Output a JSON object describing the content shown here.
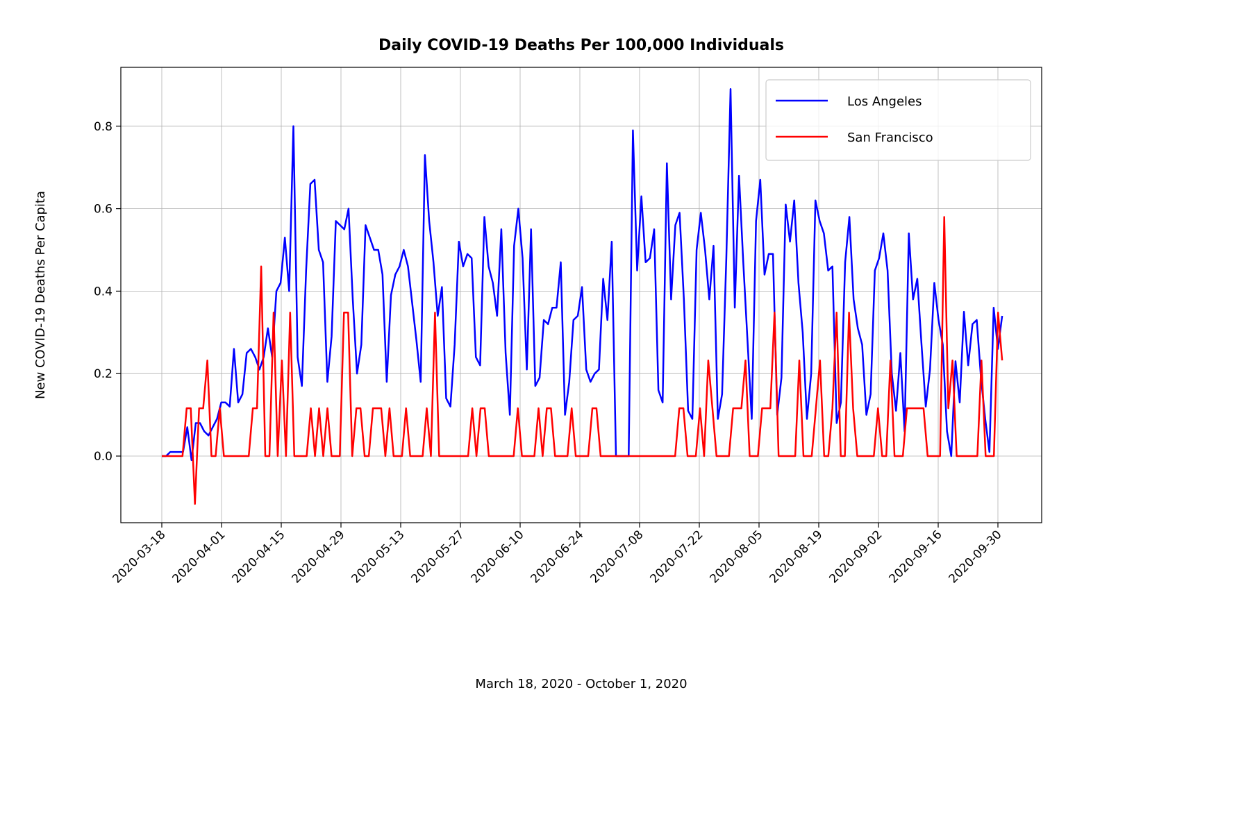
{
  "chart_data": {
    "type": "line",
    "title": "Daily COVID-19 Deaths Per 100,000 Individuals",
    "xlabel": "March 18, 2020 - October 1, 2020",
    "ylabel": "New COVID-19 Deaths Per Capita",
    "x_start": "2020-03-18",
    "x_ticks": [
      "2020-03-18",
      "2020-04-01",
      "2020-04-15",
      "2020-04-29",
      "2020-05-13",
      "2020-05-27",
      "2020-06-10",
      "2020-06-24",
      "2020-07-08",
      "2020-07-22",
      "2020-08-05",
      "2020-08-19",
      "2020-09-02",
      "2020-09-16",
      "2020-09-30"
    ],
    "y_ticks": [
      "0.0",
      "0.2",
      "0.4",
      "0.6",
      "0.8"
    ],
    "ylim": [
      -0.16,
      0.94
    ],
    "grid": true,
    "legend_position": "top-right",
    "series": [
      {
        "name": "Los Angeles",
        "color": "#0000ff",
        "values": [
          0.0,
          0.0,
          0.01,
          0.01,
          0.01,
          0.01,
          0.07,
          -0.01,
          0.08,
          0.08,
          0.06,
          0.05,
          0.07,
          0.09,
          0.13,
          0.13,
          0.12,
          0.26,
          0.13,
          0.15,
          0.25,
          0.26,
          0.24,
          0.21,
          0.24,
          0.31,
          0.24,
          0.4,
          0.42,
          0.53,
          0.4,
          0.8,
          0.24,
          0.17,
          0.45,
          0.66,
          0.67,
          0.5,
          0.47,
          0.18,
          0.29,
          0.57,
          0.56,
          0.55,
          0.6,
          0.38,
          0.2,
          0.27,
          0.56,
          0.53,
          0.5,
          0.5,
          0.44,
          0.18,
          0.39,
          0.44,
          0.46,
          0.5,
          0.46,
          0.37,
          0.28,
          0.18,
          0.73,
          0.57,
          0.47,
          0.34,
          0.41,
          0.14,
          0.12,
          0.27,
          0.52,
          0.46,
          0.49,
          0.48,
          0.24,
          0.22,
          0.58,
          0.46,
          0.42,
          0.34,
          0.55,
          0.25,
          0.1,
          0.51,
          0.6,
          0.48,
          0.21,
          0.55,
          0.17,
          0.19,
          0.33,
          0.32,
          0.36,
          0.36,
          0.47,
          0.1,
          0.18,
          0.33,
          0.34,
          0.41,
          0.21,
          0.18,
          0.2,
          0.21,
          0.43,
          0.33,
          0.52,
          0.0,
          0.0,
          0.0,
          0.0,
          0.79,
          0.45,
          0.63,
          0.47,
          0.48,
          0.55,
          0.16,
          0.13,
          0.71,
          0.38,
          0.56,
          0.59,
          0.38,
          0.11,
          0.09,
          0.5,
          0.59,
          0.5,
          0.38,
          0.51,
          0.09,
          0.15,
          0.48,
          0.89,
          0.36,
          0.68,
          0.47,
          0.28,
          0.09,
          0.57,
          0.67,
          0.44,
          0.49,
          0.49,
          0.1,
          0.19,
          0.61,
          0.52,
          0.62,
          0.42,
          0.3,
          0.09,
          0.2,
          0.62,
          0.57,
          0.54,
          0.45,
          0.46,
          0.08,
          0.13,
          0.47,
          0.58,
          0.38,
          0.31,
          0.27,
          0.1,
          0.15,
          0.45,
          0.48,
          0.54,
          0.45,
          0.2,
          0.11,
          0.25,
          0.06,
          0.54,
          0.38,
          0.43,
          0.27,
          0.12,
          0.21,
          0.42,
          0.33,
          0.27,
          0.06,
          0.0,
          0.23,
          0.13,
          0.35,
          0.22,
          0.32,
          0.33,
          0.19,
          0.09,
          0.01,
          0.36,
          0.26,
          0.34
        ]
      },
      {
        "name": "San Francisco",
        "color": "#ff0000",
        "values": [
          0.0,
          0.0,
          0.0,
          0.0,
          0.0,
          0.0,
          0.116,
          0.116,
          -0.116,
          0.116,
          0.116,
          0.232,
          0.0,
          0.0,
          0.116,
          0.0,
          0.0,
          0.0,
          0.0,
          0.0,
          0.0,
          0.0,
          0.116,
          0.116,
          0.46,
          0.0,
          0.0,
          0.348,
          0.0,
          0.232,
          0.0,
          0.348,
          0.0,
          0.0,
          0.0,
          0.0,
          0.116,
          0.0,
          0.116,
          0.0,
          0.116,
          0.0,
          0.0,
          0.0,
          0.348,
          0.348,
          0.0,
          0.116,
          0.116,
          0.0,
          0.0,
          0.116,
          0.116,
          0.116,
          0.0,
          0.116,
          0.0,
          0.0,
          0.0,
          0.116,
          0.0,
          0.0,
          0.0,
          0.0,
          0.116,
          0.0,
          0.348,
          0.0,
          0.0,
          0.0,
          0.0,
          0.0,
          0.0,
          0.0,
          0.0,
          0.116,
          0.0,
          0.116,
          0.116,
          0.0,
          0.0,
          0.0,
          0.0,
          0.0,
          0.0,
          0.0,
          0.116,
          0.0,
          0.0,
          0.0,
          0.0,
          0.116,
          0.0,
          0.116,
          0.116,
          0.0,
          0.0,
          0.0,
          0.0,
          0.116,
          0.0,
          0.0,
          0.0,
          0.0,
          0.116,
          0.116,
          0.0,
          0.0,
          0.0,
          0.0,
          0.0,
          0.0,
          0.0,
          0.0,
          0.0,
          0.0,
          0.0,
          0.0,
          0.0,
          0.0,
          0.0,
          0.0,
          0.0,
          0.0,
          0.0,
          0.116,
          0.116,
          0.0,
          0.0,
          0.0,
          0.116,
          0.0,
          0.232,
          0.116,
          0.0,
          0.0,
          0.0,
          0.0,
          0.116,
          0.116,
          0.116,
          0.232,
          0.0,
          0.0,
          0.0,
          0.116,
          0.116,
          0.116,
          0.348,
          0.0,
          0.0,
          0.0,
          0.0,
          0.0,
          0.232,
          0.0,
          0.0,
          0.0,
          0.116,
          0.232,
          0.0,
          0.0,
          0.116,
          0.348,
          0.0,
          0.0,
          0.348,
          0.116,
          0.0,
          0.0,
          0.0,
          0.0,
          0.0,
          0.116,
          0.0,
          0.0,
          0.232,
          0.0,
          0.0,
          0.0,
          0.116,
          0.116,
          0.116,
          0.116,
          0.116,
          0.0,
          0.0,
          0.0,
          0.0,
          0.58,
          0.116,
          0.232,
          0.0,
          0.0,
          0.0,
          0.0,
          0.0,
          0.0,
          0.232,
          0.0,
          0.0,
          0.0,
          0.348,
          0.232
        ]
      }
    ]
  }
}
